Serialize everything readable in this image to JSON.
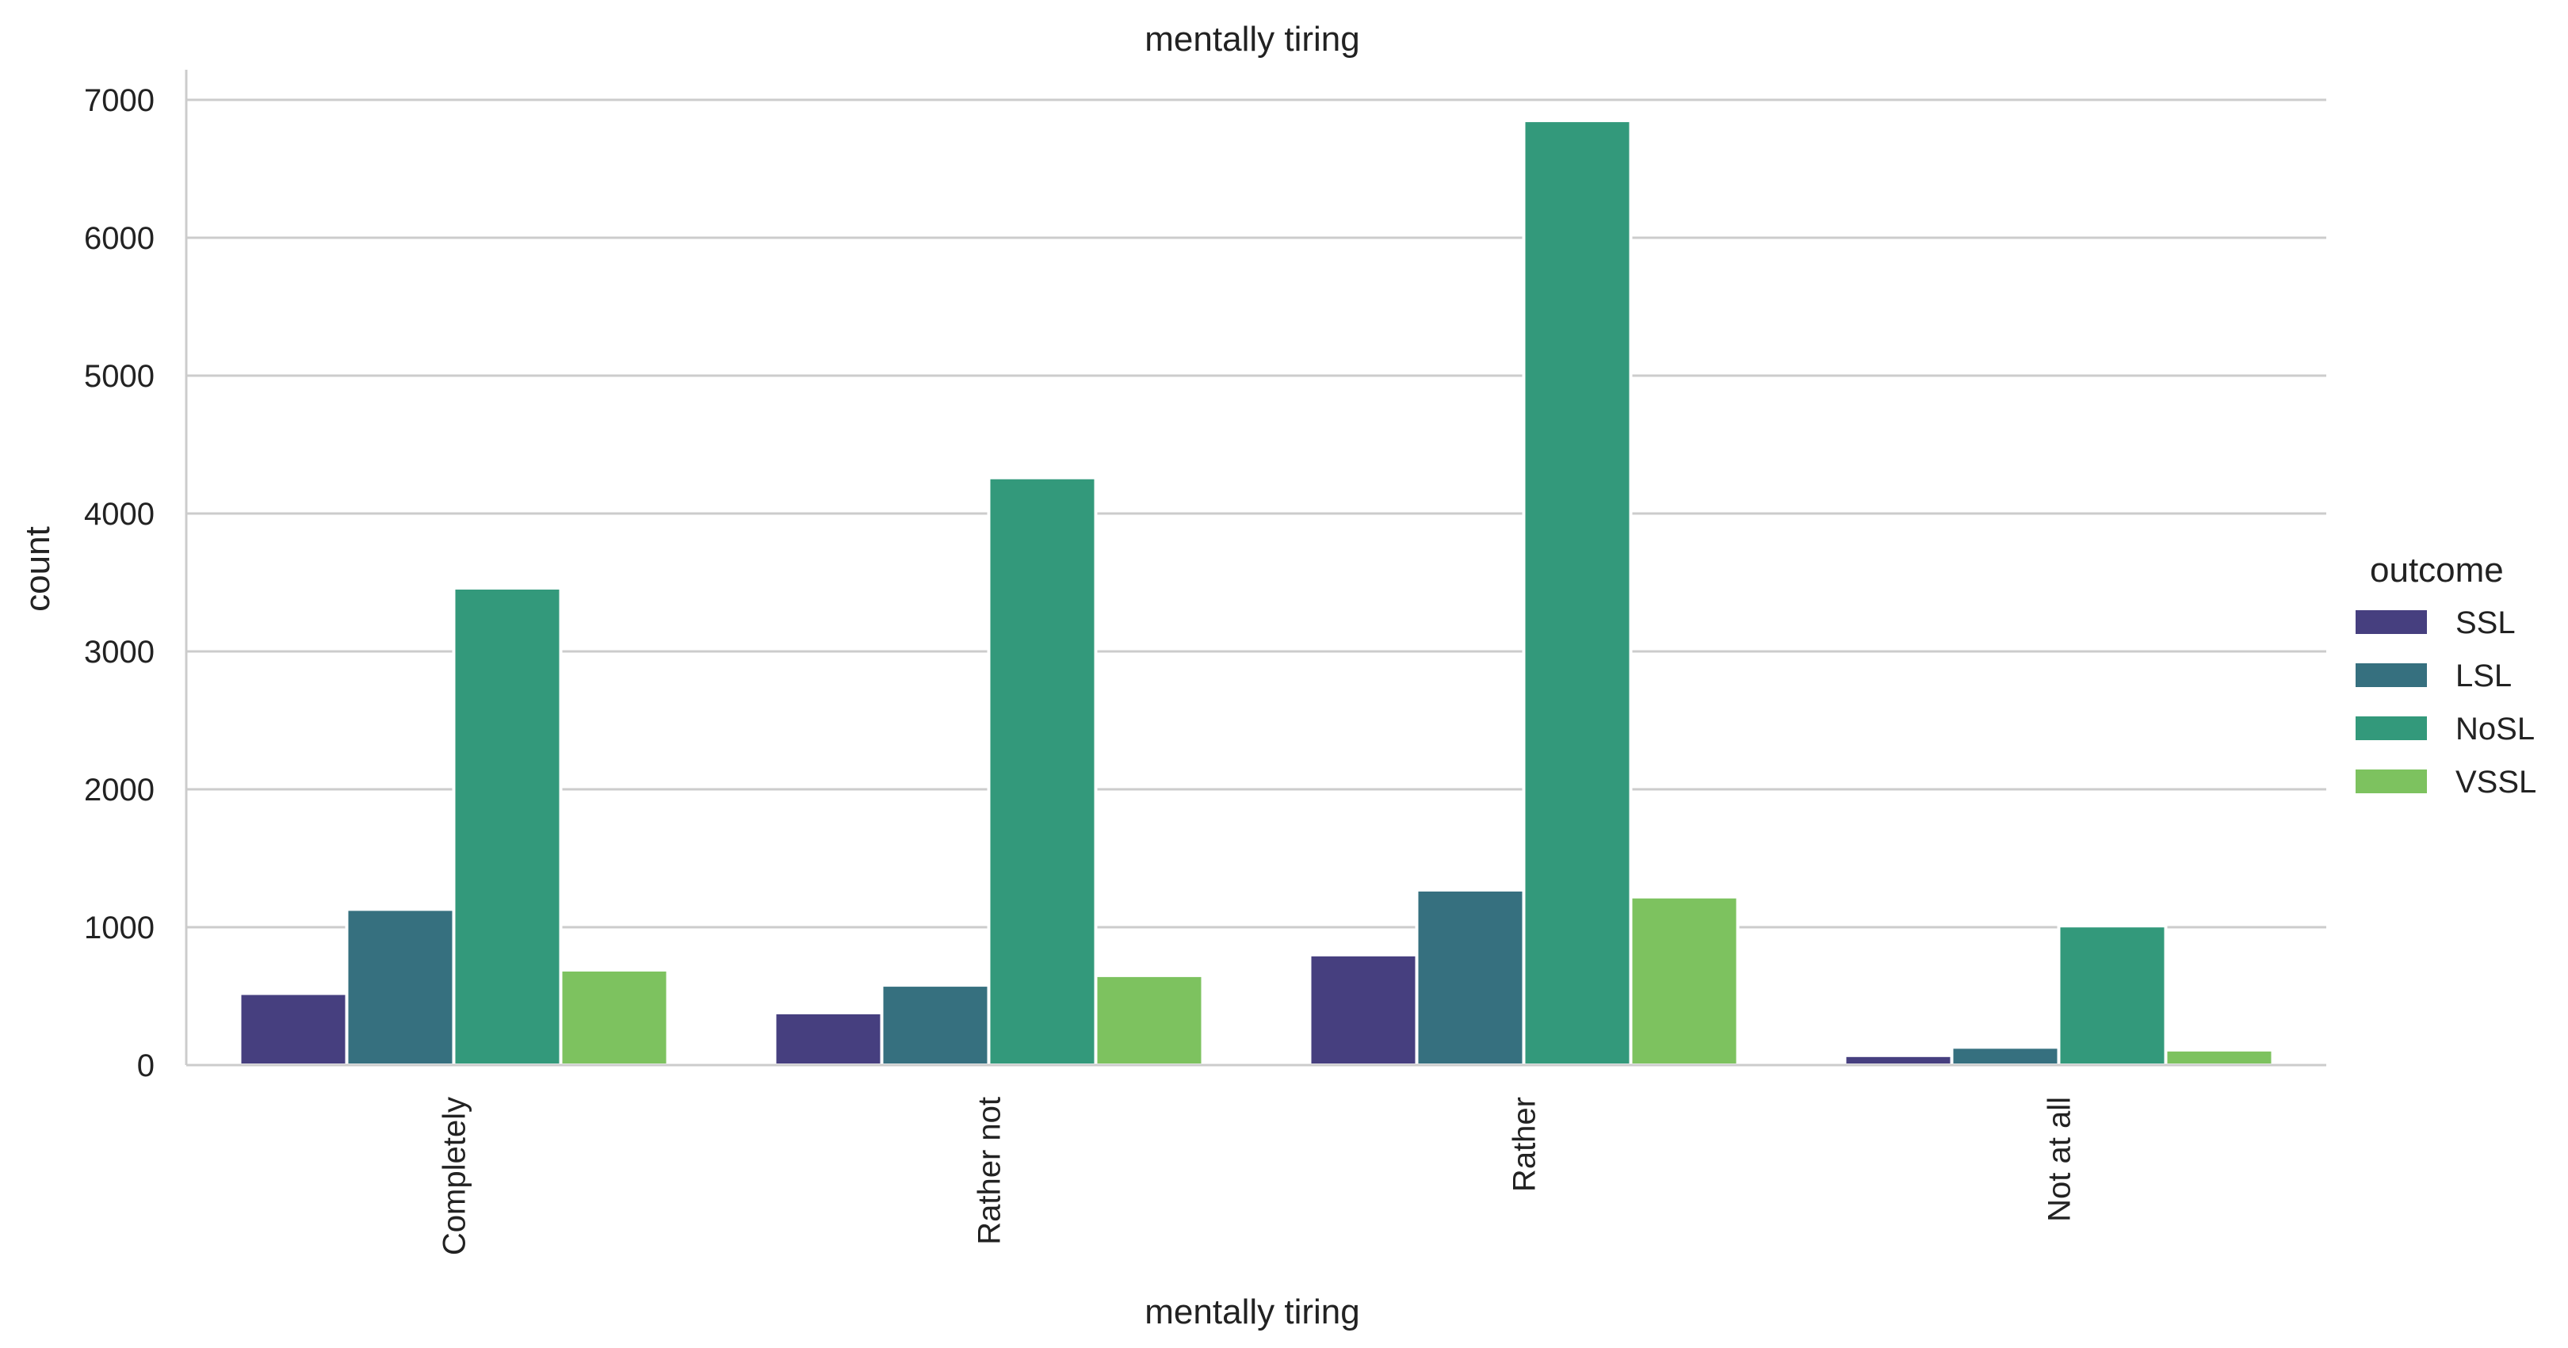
{
  "chart_data": {
    "type": "bar",
    "title": "mentally tiring",
    "xlabel": "mentally tiring",
    "ylabel": "count",
    "categories": [
      "Completely",
      "Rather not",
      "Rather",
      "Not at all"
    ],
    "ylim": [
      0,
      7200
    ],
    "yticks": [
      0,
      1000,
      2000,
      3000,
      4000,
      5000,
      6000,
      7000
    ],
    "grid": "horizontal",
    "legend": {
      "title": "outcome",
      "placement": "right"
    },
    "series": [
      {
        "name": "SSL",
        "color": "#463f7f",
        "values": [
          520,
          380,
          800,
          70
        ]
      },
      {
        "name": "LSL",
        "color": "#36707f",
        "values": [
          1130,
          580,
          1270,
          130
        ]
      },
      {
        "name": "NoSL",
        "color": "#33997b",
        "values": [
          3460,
          4260,
          6850,
          1010
        ]
      },
      {
        "name": "VSSL",
        "color": "#7dc25f",
        "values": [
          690,
          650,
          1220,
          110
        ]
      }
    ]
  }
}
